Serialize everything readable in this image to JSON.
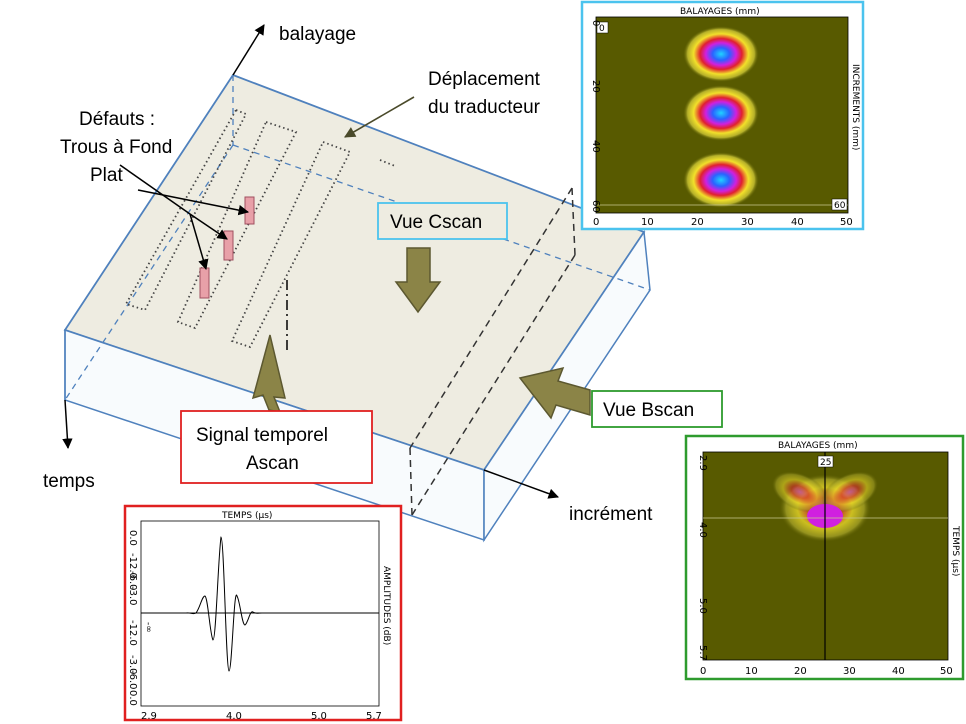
{
  "labels": {
    "balayage": "balayage",
    "temps": "temps",
    "increment": "incrément",
    "deplacement_line1": "Déplacement",
    "deplacement_line2": "du traducteur",
    "defauts_line1": "Défauts :",
    "defauts_line2": "Trous à Fond",
    "defauts_line3": "Plat",
    "vue_cscan": "Vue Cscan",
    "vue_bscan": "Vue Bscan",
    "signal_line1": "Signal temporel",
    "signal_line2": "Ascan"
  },
  "colors": {
    "block_fill": "#EEECE1",
    "block_edge": "#4F81BD",
    "big_arrow": "#8B8447",
    "cscan_frame": "#4BC3EE",
    "bscan_frame": "#2E9B2E",
    "ascan_frame": "#E02020",
    "defect_fill": "#E8A0A8",
    "map_background": "#585A00"
  },
  "cscan": {
    "title": "BALAYAGES (mm)",
    "ylabel": "INCREMENTS (mm)",
    "x_ticks": [
      "0",
      "10",
      "20",
      "30",
      "40",
      "50"
    ],
    "y_ticks": [
      "0",
      "20",
      "40",
      "60"
    ],
    "corner_top": "0",
    "corner_bottom": "60"
  },
  "bscan": {
    "title": "BALAYAGES (mm)",
    "ylabel": "TEMPS (µs)",
    "x_ticks": [
      "0",
      "10",
      "20",
      "30",
      "40",
      "50"
    ],
    "y_ticks": [
      "2.9",
      "4.0",
      "5.0",
      "5.7"
    ],
    "cursor": "25"
  },
  "ascan": {
    "title": "TEMPS (µs)",
    "ylabel": "AMPLITUDES (dB)",
    "x_ticks": [
      "2.9",
      "4.0",
      "5.0",
      "5.7"
    ],
    "y_ticks": [
      "0.0",
      "-12.0",
      "-6.0",
      "-3.0",
      "-3.0",
      "-6.0",
      "-12.0",
      "0.0"
    ],
    "marker": "-∞"
  }
}
